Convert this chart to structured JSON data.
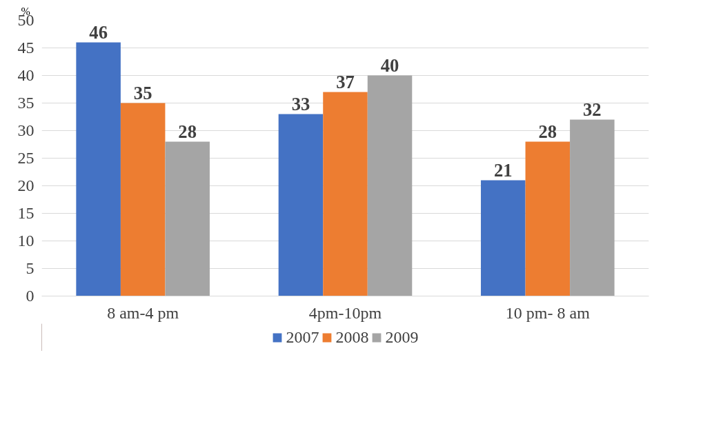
{
  "chart_data": {
    "type": "bar",
    "ylabel": "%",
    "categories": [
      "8 am-4 pm",
      "4pm-10pm",
      "10 pm- 8 am"
    ],
    "series": [
      {
        "name": "2007",
        "color": "#4472c4",
        "values": [
          46,
          33,
          21
        ]
      },
      {
        "name": "2008",
        "color": "#ed7d31",
        "values": [
          35,
          37,
          28
        ]
      },
      {
        "name": "2009",
        "color": "#a5a5a5",
        "values": [
          28,
          40,
          32
        ]
      }
    ],
    "ylim": [
      0,
      50
    ],
    "yticks": [
      0,
      5,
      10,
      15,
      20,
      25,
      30,
      35,
      40,
      45,
      50
    ],
    "grid": "y",
    "legend": "bottom",
    "data_labels": true
  }
}
